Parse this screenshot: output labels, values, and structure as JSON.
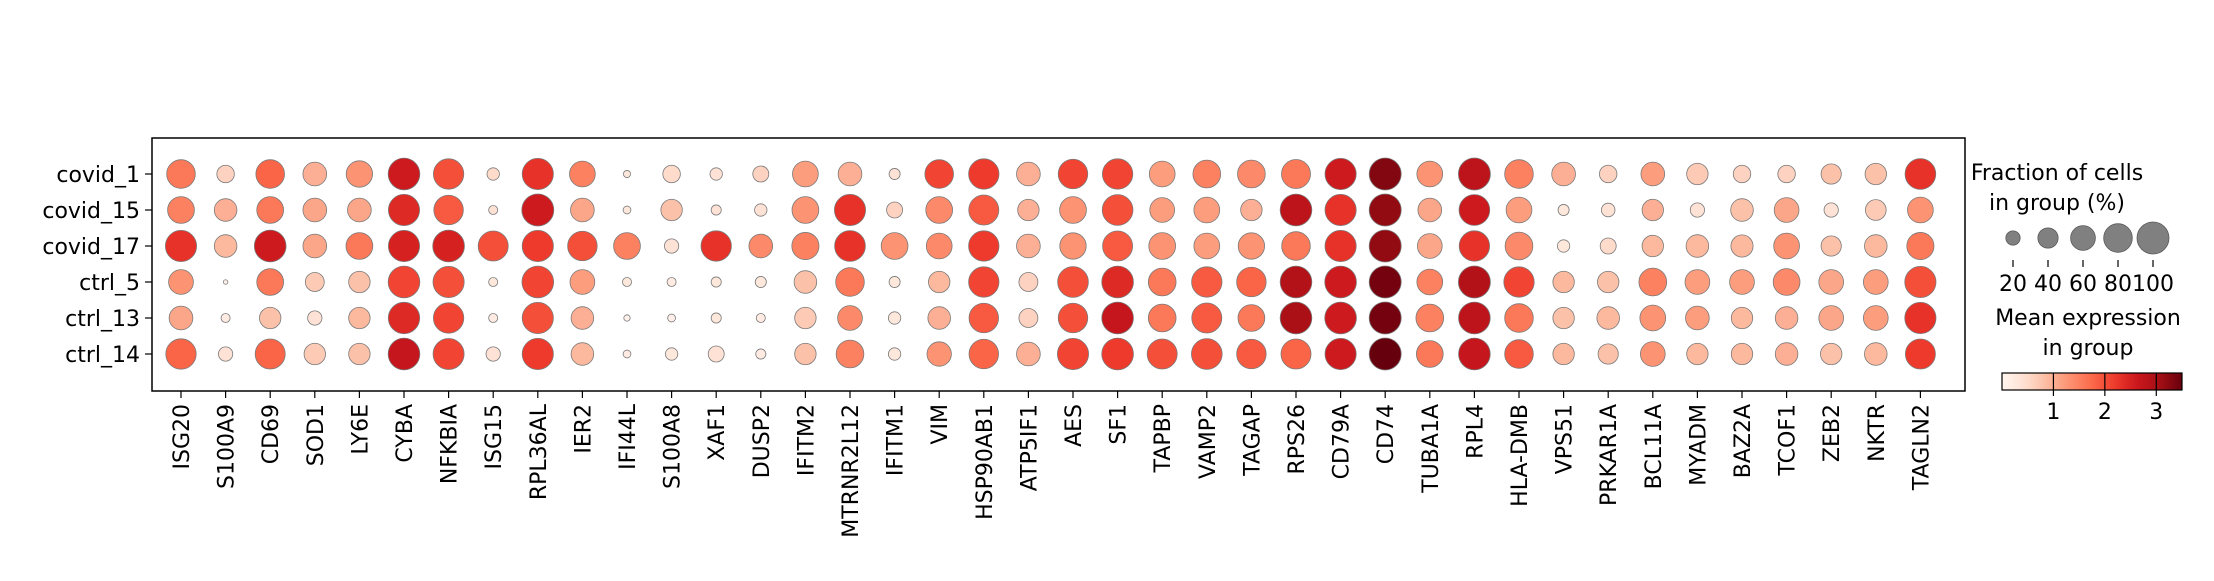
{
  "chart_data": {
    "type": "dotplot",
    "rows": [
      "covid_1",
      "covid_15",
      "covid_17",
      "ctrl_5",
      "ctrl_13",
      "ctrl_14"
    ],
    "columns": [
      "ISG20",
      "S100A9",
      "CD69",
      "SOD1",
      "LY6E",
      "CYBA",
      "NFKBIA",
      "ISG15",
      "RPL36AL",
      "IER2",
      "IFI44L",
      "S100A8",
      "XAF1",
      "DUSP2",
      "IFITM2",
      "MTRNR2L12",
      "IFITM1",
      "VIM",
      "HSP90AB1",
      "ATP5IF1",
      "AES",
      "SF1",
      "TAPBP",
      "VAMP2",
      "TAGAP",
      "RPS26",
      "CD79A",
      "CD74",
      "TUBA1A",
      "RPL4",
      "HLA-DMB",
      "VPS51",
      "PRKAR1A",
      "BCL11A",
      "MYADM",
      "BAZ2A",
      "TCOF1",
      "ZEB2",
      "NKTR",
      "TAGLN2"
    ],
    "fraction_pct": [
      [
        80,
        30,
        80,
        55,
        68,
        98,
        90,
        15,
        95,
        65,
        5,
        30,
        15,
        25,
        65,
        55,
        12,
        80,
        90,
        55,
        85,
        90,
        65,
        75,
        75,
        82,
        95,
        100,
        65,
        100,
        80,
        55,
        30,
        55,
        45,
        30,
        30,
        40,
        45,
        92
      ],
      [
        70,
        50,
        70,
        55,
        55,
        95,
        85,
        8,
        100,
        55,
        6,
        45,
        10,
        15,
        70,
        95,
        25,
        70,
        88,
        45,
        70,
        92,
        60,
        65,
        45,
        98,
        95,
        100,
        55,
        92,
        65,
        12,
        18,
        45,
        20,
        50,
        60,
        20,
        42,
        65
      ],
      [
        95,
        50,
        98,
        55,
        70,
        95,
        98,
        88,
        95,
        85,
        70,
        20,
        90,
        55,
        72,
        92,
        70,
        65,
        90,
        55,
        68,
        88,
        70,
        65,
        68,
        80,
        95,
        100,
        60,
        90,
        75,
        15,
        25,
        45,
        50,
        48,
        65,
        40,
        50,
        72
      ],
      [
        60,
        2,
        70,
        35,
        45,
        98,
        95,
        8,
        98,
        60,
        8,
        8,
        10,
        12,
        50,
        80,
        12,
        45,
        90,
        35,
        92,
        98,
        75,
        90,
        85,
        98,
        98,
        100,
        65,
        100,
        90,
        45,
        45,
        75,
        60,
        60,
        70,
        60,
        60,
        95
      ],
      [
        55,
        8,
        45,
        20,
        45,
        96,
        90,
        8,
        95,
        50,
        4,
        6,
        10,
        8,
        45,
        60,
        15,
        50,
        85,
        35,
        85,
        98,
        75,
        88,
        70,
        98,
        98,
        100,
        75,
        98,
        80,
        45,
        50,
        65,
        55,
        45,
        50,
        60,
        60,
        95
      ],
      [
        90,
        20,
        88,
        45,
        45,
        98,
        94,
        20,
        95,
        50,
        6,
        15,
        25,
        10,
        45,
        75,
        15,
        58,
        85,
        55,
        95,
        98,
        88,
        92,
        85,
        88,
        95,
        100,
        70,
        98,
        80,
        45,
        40,
        60,
        45,
        45,
        50,
        45,
        50,
        88
      ]
    ],
    "mean_expression": [
      [
        1.6,
        0.6,
        1.8,
        1.0,
        1.3,
        2.6,
        2.0,
        0.5,
        2.3,
        1.5,
        0.3,
        0.5,
        0.4,
        0.6,
        1.2,
        1.0,
        0.4,
        2.1,
        2.2,
        1.0,
        2.1,
        2.1,
        1.2,
        1.5,
        1.4,
        1.6,
        2.6,
        3.3,
        1.3,
        2.8,
        1.5,
        1.0,
        0.6,
        1.2,
        0.7,
        0.6,
        0.6,
        0.8,
        0.8,
        2.3
      ],
      [
        1.5,
        1.0,
        1.6,
        1.1,
        1.1,
        2.4,
        1.9,
        0.4,
        2.6,
        1.1,
        0.3,
        0.8,
        0.4,
        0.4,
        1.3,
        2.3,
        0.6,
        1.4,
        1.9,
        1.0,
        1.3,
        2.0,
        1.2,
        1.2,
        1.0,
        2.8,
        2.3,
        3.2,
        1.1,
        2.6,
        1.2,
        0.3,
        0.4,
        1.0,
        0.4,
        0.8,
        1.1,
        0.4,
        0.7,
        1.3
      ],
      [
        2.3,
        0.9,
        2.6,
        1.1,
        1.6,
        2.5,
        2.5,
        2.0,
        2.2,
        2.0,
        1.5,
        0.4,
        2.3,
        1.4,
        1.5,
        2.3,
        1.3,
        1.4,
        2.2,
        1.0,
        1.3,
        1.9,
        1.3,
        1.2,
        1.3,
        1.6,
        2.3,
        3.2,
        1.1,
        2.3,
        1.4,
        0.3,
        0.5,
        0.9,
        0.9,
        0.9,
        1.3,
        0.8,
        0.9,
        1.6
      ],
      [
        1.3,
        0.1,
        1.6,
        0.7,
        0.8,
        2.1,
        2.0,
        0.3,
        2.1,
        1.2,
        0.3,
        0.2,
        0.3,
        0.3,
        0.8,
        1.6,
        0.3,
        0.9,
        2.1,
        0.6,
        2.0,
        2.4,
        1.6,
        1.9,
        1.8,
        2.9,
        2.6,
        3.4,
        1.5,
        2.9,
        2.1,
        0.9,
        0.8,
        1.5,
        1.2,
        1.2,
        1.4,
        1.1,
        1.2,
        2.0
      ],
      [
        1.1,
        0.2,
        0.8,
        0.4,
        0.9,
        2.4,
        2.1,
        0.2,
        2.0,
        1.0,
        0.1,
        0.1,
        0.3,
        0.2,
        0.7,
        1.4,
        0.3,
        1.0,
        1.9,
        0.6,
        2.0,
        2.7,
        1.6,
        1.9,
        1.6,
        3.0,
        2.6,
        3.4,
        1.5,
        2.8,
        1.6,
        0.8,
        0.9,
        1.3,
        1.2,
        0.9,
        1.0,
        1.1,
        1.2,
        2.3
      ],
      [
        1.8,
        0.4,
        1.8,
        0.7,
        0.8,
        2.7,
        2.1,
        0.4,
        2.2,
        0.9,
        0.2,
        0.3,
        0.4,
        0.2,
        0.8,
        1.5,
        0.3,
        1.3,
        1.8,
        1.0,
        2.1,
        2.2,
        2.0,
        2.0,
        1.9,
        1.8,
        2.6,
        3.5,
        1.6,
        2.7,
        1.9,
        0.9,
        0.8,
        1.3,
        0.9,
        0.9,
        1.0,
        0.8,
        0.9,
        2.2
      ]
    ],
    "size_legend": {
      "title": [
        "Fraction of cells",
        "in group (%)"
      ],
      "values": [
        20,
        40,
        60,
        80,
        100
      ],
      "labels": [
        "20",
        "40",
        "60",
        "80",
        "100"
      ]
    },
    "color_legend": {
      "title": [
        "Mean expression",
        "in group"
      ],
      "colormap": "Reds",
      "vmin": 0,
      "vmax": 3.5,
      "ticks": [
        1,
        2,
        3
      ],
      "tick_labels": [
        "1",
        "2",
        "3"
      ]
    }
  }
}
